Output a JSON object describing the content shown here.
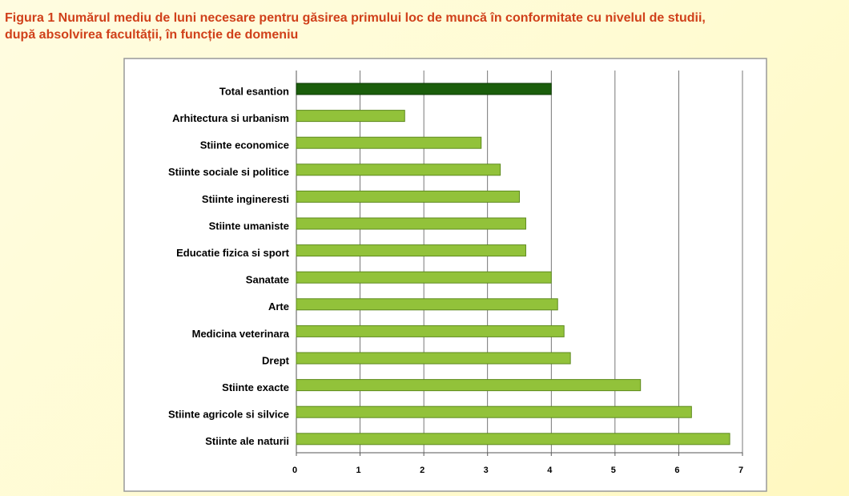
{
  "chart_data": {
    "type": "hbar",
    "title": [
      "Figura 1 Numărul mediu de luni necesare pentru găsirea primului loc de muncă în conformitate cu nivelul de studii,",
      "după absolvirea facultății, în funcție de domeniu"
    ],
    "categories": [
      "Total esantion",
      "Arhitectura  si urbanism",
      "Stiinte economice",
      "Stiinte sociale  si politice",
      "Stiinte ingineresti",
      "Stiinte umaniste",
      "Educatie fizica si sport",
      "Sanatate",
      "Arte",
      "Medicina veterinara",
      "Drept",
      "Stiinte exacte",
      "Stiinte agricole  si silvice",
      "Stiinte ale naturii"
    ],
    "values": [
      4.0,
      1.7,
      2.9,
      3.2,
      3.5,
      3.6,
      3.6,
      4.0,
      4.1,
      4.2,
      4.3,
      5.4,
      6.2,
      6.8
    ],
    "colors": [
      "#1b5e0c",
      "#92c23a",
      "#92c23a",
      "#92c23a",
      "#92c23a",
      "#92c23a",
      "#92c23a",
      "#92c23a",
      "#92c23a",
      "#92c23a",
      "#92c23a",
      "#92c23a",
      "#92c23a",
      "#92c23a"
    ],
    "xlim": [
      0,
      7
    ],
    "xticks": [
      0,
      1,
      2,
      3,
      4,
      5,
      6,
      7
    ],
    "grid": true
  }
}
